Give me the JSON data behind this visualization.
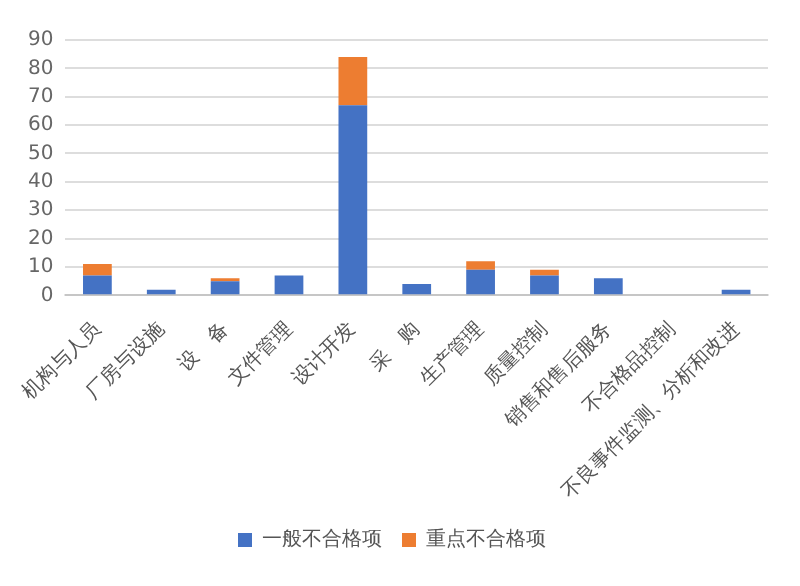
{
  "chart_data": {
    "type": "bar",
    "stacked": true,
    "categories": [
      "机构与人员",
      "厂房与设施",
      "设　备",
      "文件管理",
      "设计开发",
      "采　购",
      "生产管理",
      "质量控制",
      "销售和售后服务",
      "不合格品控制",
      "不良事件监测、分析和改进"
    ],
    "series": [
      {
        "name": "一般不合格项",
        "color": "#4472c4",
        "values": [
          7,
          2,
          5,
          7,
          67,
          4,
          9,
          7,
          6,
          0,
          2
        ]
      },
      {
        "name": "重点不合格项",
        "color": "#ed7d31",
        "values": [
          4,
          0,
          1,
          0,
          17,
          0,
          3,
          2,
          0,
          0,
          0
        ]
      }
    ],
    "ylim": [
      0,
      90
    ],
    "yticks": [
      0,
      10,
      20,
      30,
      40,
      50,
      60,
      70,
      80,
      90
    ],
    "grid": "y",
    "legend": "bottom"
  }
}
